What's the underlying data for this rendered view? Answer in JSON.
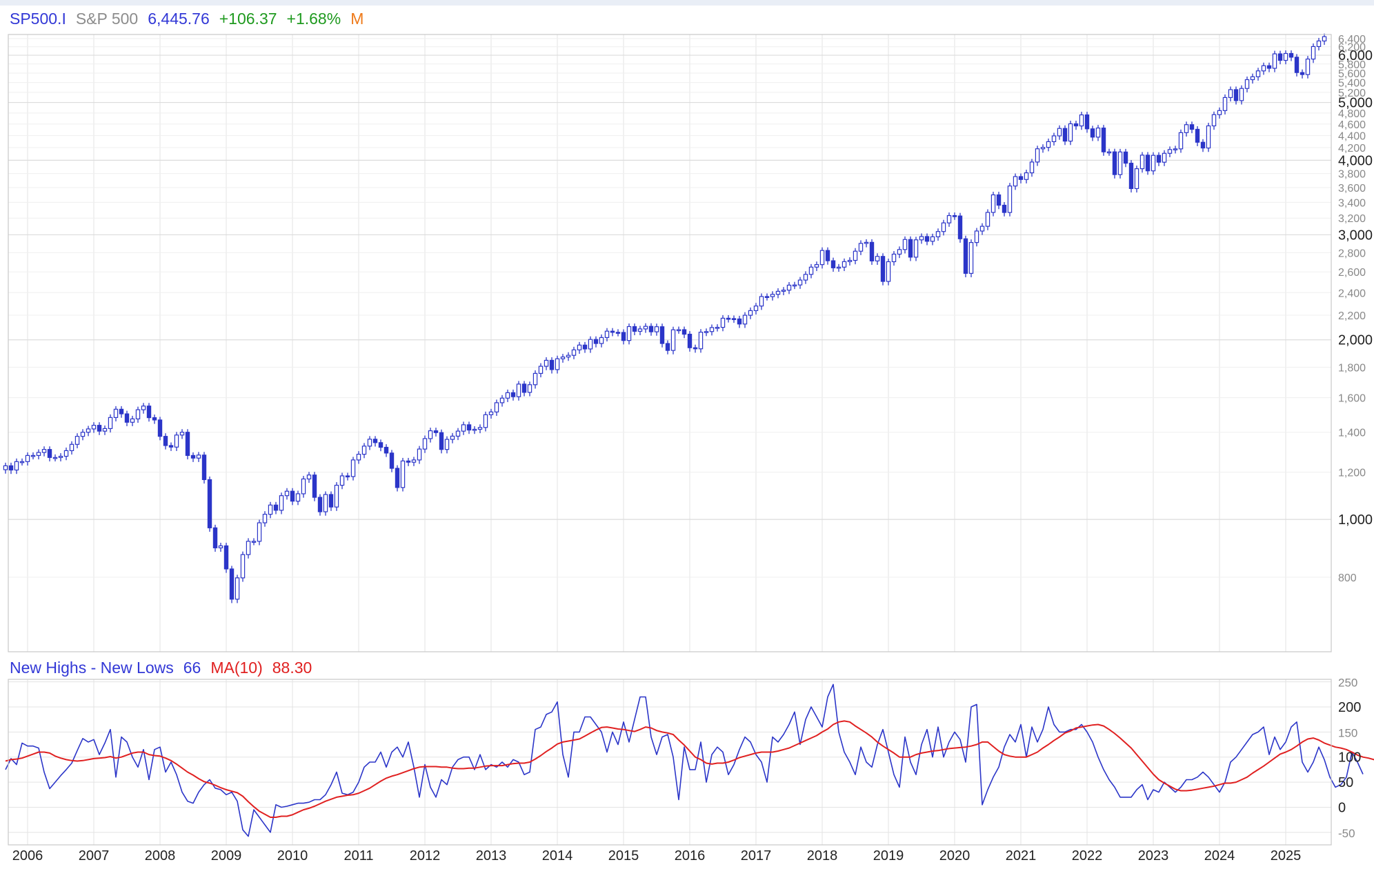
{
  "header": {
    "symbol": "SP500.I",
    "name": "S&P 500",
    "price": "6,445.76",
    "change": "+106.37",
    "change_pct": "+1.68%",
    "frequency": "M"
  },
  "indicator_header": {
    "name": "New Highs - New Lows",
    "value": "66",
    "ma_label": "MA(10)",
    "ma_value": "88.30"
  },
  "colors": {
    "price_series": "#2b35c8",
    "indicator_series": "#2b35c8",
    "ma_series": "#e02020",
    "grid": "#e3e3e3"
  },
  "chart_data": [
    {
      "type": "candlestick",
      "title": "SP500.I S&P 500",
      "frequency": "monthly",
      "xlim": [
        "2005-09",
        "2025-08"
      ],
      "ylim": [
        600,
        6500
      ],
      "y_ticks_major": [
        1000,
        2000,
        3000,
        4000,
        5000,
        6000
      ],
      "y_ticks_minor": [
        800,
        1200,
        1400,
        1600,
        1800,
        2200,
        2400,
        2600,
        2800,
        3200,
        3400,
        3600,
        3800,
        4200,
        4400,
        4600,
        4800,
        5200,
        5400,
        5600,
        5800,
        6200,
        6400
      ],
      "x_tick_labels": [
        "2006",
        "2007",
        "2008",
        "2009",
        "2010",
        "2011",
        "2012",
        "2013",
        "2014",
        "2015",
        "2016",
        "2017",
        "2018",
        "2019",
        "2020",
        "2021",
        "2022",
        "2023",
        "2024",
        "2025"
      ],
      "grid": true,
      "closes_start": "2005-09",
      "closes": [
        1230,
        1210,
        1250,
        1250,
        1280,
        1280,
        1295,
        1310,
        1270,
        1270,
        1276,
        1304,
        1336,
        1378,
        1400,
        1418,
        1438,
        1406,
        1420,
        1482,
        1530,
        1503,
        1455,
        1474,
        1527,
        1549,
        1481,
        1468,
        1378,
        1330,
        1322,
        1385,
        1400,
        1280,
        1267,
        1282,
        1166,
        968,
        896,
        903,
        826,
        735,
        798,
        873,
        919,
        919,
        987,
        1020,
        1057,
        1036,
        1096,
        1115,
        1073,
        1104,
        1169,
        1187,
        1089,
        1030,
        1101,
        1049,
        1141,
        1183,
        1180,
        1258,
        1286,
        1327,
        1363,
        1345,
        1321,
        1292,
        1218,
        1131,
        1253,
        1247,
        1258,
        1312,
        1366,
        1408,
        1398,
        1310,
        1362,
        1379,
        1406,
        1441,
        1412,
        1416,
        1426,
        1498,
        1514,
        1569,
        1597,
        1631,
        1606,
        1686,
        1633,
        1682,
        1757,
        1806,
        1848,
        1783,
        1859,
        1872,
        1884,
        1924,
        1960,
        1931,
        2003,
        1972,
        2018,
        2068,
        2059,
        2058,
        1995,
        2105,
        2067,
        2086,
        2107,
        2063,
        2104,
        1972,
        1920,
        2079,
        2080,
        2044,
        1940,
        1932,
        2060,
        2065,
        2097,
        2099,
        2174,
        2171,
        2168,
        2126,
        2199,
        2239,
        2279,
        2364,
        2363,
        2384,
        2412,
        2423,
        2470,
        2472,
        2519,
        2575,
        2648,
        2674,
        2824,
        2714,
        2641,
        2648,
        2705,
        2718,
        2816,
        2902,
        2914,
        2712,
        2760,
        2506,
        2704,
        2784,
        2834,
        2946,
        2752,
        2942,
        2980,
        2926,
        2977,
        3038,
        3141,
        3231,
        3226,
        2954,
        2585,
        2912,
        3044,
        3100,
        3271,
        3500,
        3363,
        3270,
        3622,
        3756,
        3714,
        3811,
        3973,
        4181,
        4204,
        4298,
        4395,
        4523,
        4307,
        4605,
        4567,
        4766,
        4516,
        4374,
        4530,
        4132,
        4132,
        3785,
        4130,
        3955,
        3586,
        3872,
        4080,
        3840,
        4077,
        3970,
        4109,
        4169,
        4180,
        4450,
        4589,
        4508,
        4288,
        4194,
        4568,
        4770,
        4846,
        5096,
        5254,
        5036,
        5278,
        5460,
        5522,
        5648,
        5762,
        5705,
        6032,
        5882,
        6041,
        5955,
        5612,
        5569,
        5912,
        6205,
        6339,
        6446
      ]
    },
    {
      "type": "line",
      "title": "New Highs - New Lows",
      "xlim": [
        "2005-09",
        "2025-08"
      ],
      "ylim": [
        -75,
        255
      ],
      "y_ticks": [
        -50,
        0,
        50,
        100,
        150,
        200,
        250
      ],
      "grid": true,
      "x_start": "2005-09",
      "series": [
        {
          "name": "New Highs - New Lows",
          "color": "#2b35c8",
          "values": [
            75,
            97,
            85,
            128,
            122,
            122,
            118,
            70,
            37,
            50,
            63,
            75,
            88,
            113,
            137,
            130,
            135,
            105,
            128,
            155,
            60,
            140,
            130,
            100,
            80,
            115,
            55,
            115,
            120,
            70,
            90,
            65,
            30,
            12,
            8,
            30,
            45,
            55,
            38,
            35,
            25,
            30,
            12,
            -45,
            -58,
            -5,
            -20,
            -35,
            -50,
            5,
            0,
            2,
            5,
            8,
            8,
            10,
            15,
            15,
            25,
            45,
            70,
            28,
            25,
            30,
            50,
            80,
            90,
            90,
            110,
            80,
            110,
            120,
            100,
            130,
            80,
            20,
            85,
            40,
            20,
            55,
            45,
            80,
            95,
            100,
            100,
            75,
            105,
            75,
            85,
            80,
            90,
            80,
            95,
            90,
            65,
            70,
            155,
            160,
            185,
            190,
            210,
            105,
            60,
            150,
            150,
            180,
            180,
            165,
            150,
            110,
            150,
            125,
            170,
            130,
            175,
            220,
            220,
            140,
            105,
            140,
            145,
            100,
            15,
            120,
            75,
            75,
            130,
            50,
            105,
            120,
            110,
            65,
            85,
            115,
            140,
            130,
            105,
            90,
            50,
            140,
            130,
            145,
            165,
            190,
            125,
            175,
            200,
            180,
            160,
            220,
            245,
            150,
            110,
            90,
            65,
            120,
            90,
            80,
            125,
            155,
            110,
            65,
            40,
            140,
            90,
            65,
            125,
            155,
            100,
            160,
            100,
            130,
            150,
            135,
            90,
            200,
            205,
            5,
            35,
            60,
            80,
            120,
            145,
            130,
            165,
            100,
            160,
            130,
            155,
            200,
            165,
            150,
            150,
            155,
            155,
            165,
            150,
            130,
            100,
            75,
            55,
            40,
            20,
            20,
            20,
            35,
            45,
            15,
            35,
            30,
            50,
            40,
            30,
            40,
            55,
            55,
            60,
            70,
            60,
            45,
            30,
            50,
            90,
            100,
            115,
            130,
            145,
            150,
            160,
            105,
            140,
            115,
            130,
            160,
            170,
            90,
            70,
            90,
            120,
            95,
            60,
            40,
            45,
            60,
            110,
            90,
            66
          ]
        },
        {
          "name": "MA(10)",
          "color": "#e02020",
          "values": [
            92,
            95,
            96,
            98,
            102,
            106,
            110,
            110,
            108,
            102,
            98,
            95,
            93,
            92,
            93,
            95,
            97,
            98,
            99,
            101,
            98,
            100,
            104,
            108,
            110,
            110,
            105,
            103,
            102,
            98,
            93,
            86,
            78,
            70,
            64,
            57,
            51,
            48,
            44,
            39,
            35,
            32,
            29,
            22,
            11,
            1,
            -8,
            -14,
            -20,
            -20,
            -18,
            -18,
            -15,
            -10,
            -5,
            -2,
            2,
            7,
            12,
            16,
            20,
            22,
            24,
            25,
            28,
            33,
            38,
            45,
            52,
            58,
            62,
            65,
            69,
            73,
            77,
            80,
            81,
            81,
            81,
            80,
            80,
            78,
            77,
            77,
            78,
            78,
            80,
            82,
            83,
            83,
            83,
            85,
            87,
            88,
            88,
            90,
            96,
            103,
            111,
            118,
            126,
            130,
            132,
            134,
            136,
            142,
            148,
            154,
            159,
            160,
            158,
            156,
            155,
            153,
            151,
            155,
            160,
            158,
            153,
            150,
            148,
            145,
            134,
            124,
            112,
            100,
            95,
            88,
            86,
            88,
            88,
            90,
            94,
            99,
            102,
            105,
            108,
            110,
            110,
            110,
            112,
            115,
            118,
            123,
            128,
            133,
            138,
            143,
            150,
            156,
            165,
            170,
            172,
            170,
            162,
            155,
            148,
            140,
            130,
            122,
            115,
            108,
            100,
            100,
            100,
            105,
            108,
            110,
            112,
            113,
            115,
            117,
            118,
            119,
            120,
            122,
            125,
            130,
            130,
            121,
            112,
            105,
            102,
            100,
            100,
            100,
            105,
            110,
            118,
            125,
            133,
            140,
            148,
            152,
            158,
            160,
            162,
            164,
            165,
            162,
            155,
            147,
            138,
            128,
            118,
            105,
            92,
            79,
            66,
            55,
            48,
            42,
            36,
            33,
            33,
            34,
            36,
            38,
            40,
            42,
            45,
            48,
            48,
            50,
            55,
            60,
            68,
            75,
            82,
            90,
            98,
            106,
            110,
            115,
            122,
            130,
            136,
            138,
            134,
            128,
            124,
            120,
            118,
            115,
            110,
            104,
            100,
            98,
            95,
            88
          ]
        }
      ]
    }
  ]
}
